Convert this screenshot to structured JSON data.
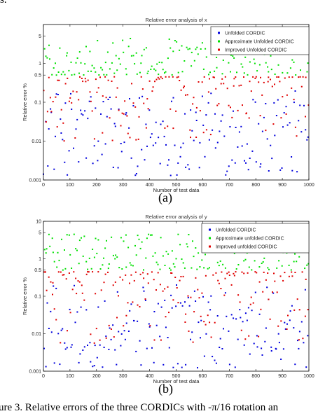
{
  "fragment_top": "s.",
  "caption": "ure 3.   Relative errors of the three CORDICs with -π/16 rotation an",
  "subfigure_labels": [
    "(a)",
    "(b)"
  ],
  "colors": {
    "unfolded": "#0000dd",
    "approximate": "#00e000",
    "improved": "#e00000"
  },
  "chart_data": [
    {
      "type": "scatter",
      "title": "Relative error analysis of x",
      "xlabel": "Number of test data",
      "ylabel": "Relative error %",
      "xlim": [
        0,
        1000
      ],
      "ylim": [
        0.001,
        10
      ],
      "yscale": "log",
      "xticks": [
        "0",
        "100",
        "200",
        "300",
        "400",
        "500",
        "600",
        "700",
        "800",
        "900",
        "1000"
      ],
      "yticks": [
        {
          "value": 0.001,
          "label": "0.001"
        },
        {
          "value": 0.01,
          "label": "0.01"
        },
        {
          "value": 0.1,
          "label": "0.1"
        },
        {
          "value": 0.5,
          "label": "0.5"
        },
        {
          "value": 1,
          "label": "1"
        },
        {
          "value": 5,
          "label": "5"
        }
      ],
      "grid": false,
      "legend_position": "top-right",
      "series": [
        {
          "name": "Unfolded CORDIC",
          "points": 1000,
          "band_approx": [
            0.0013,
            0.2
          ]
        },
        {
          "name": "Approximate Unfolded CORDIC",
          "points": 1000,
          "band_approx": [
            0.5,
            4.5
          ]
        },
        {
          "name": "Improved Unfolded CORDIC",
          "points": 1000,
          "band_approx": [
            0.01,
            0.45
          ]
        }
      ]
    },
    {
      "type": "scatter",
      "title": "Relative error analysis of y",
      "xlabel": "Number of test data",
      "ylabel": "Relative error %",
      "xlim": [
        0,
        1000
      ],
      "ylim": [
        0.001,
        10
      ],
      "yscale": "log",
      "xticks": [
        "0",
        "100",
        "200",
        "300",
        "400",
        "500",
        "600",
        "700",
        "800",
        "900",
        "1000"
      ],
      "yticks": [
        {
          "value": 0.001,
          "label": "0.001"
        },
        {
          "value": 0.01,
          "label": "0.01"
        },
        {
          "value": 0.1,
          "label": "0.1"
        },
        {
          "value": 0.5,
          "label": "0.5"
        },
        {
          "value": 1,
          "label": "1"
        },
        {
          "value": 5,
          "label": "5"
        },
        {
          "value": 10,
          "label": "10"
        }
      ],
      "grid": false,
      "legend_position": "top-right",
      "series": [
        {
          "name": "Unfolded CORDIC",
          "points": 1000,
          "band_approx": [
            0.0012,
            0.2
          ]
        },
        {
          "name": "Approximate unfolded CORDIC",
          "points": 1000,
          "band_approx": [
            0.5,
            4.5
          ]
        },
        {
          "name": "Improved unfolded CORDIC",
          "points": 1000,
          "band_approx": [
            0.005,
            0.45
          ]
        }
      ]
    }
  ]
}
